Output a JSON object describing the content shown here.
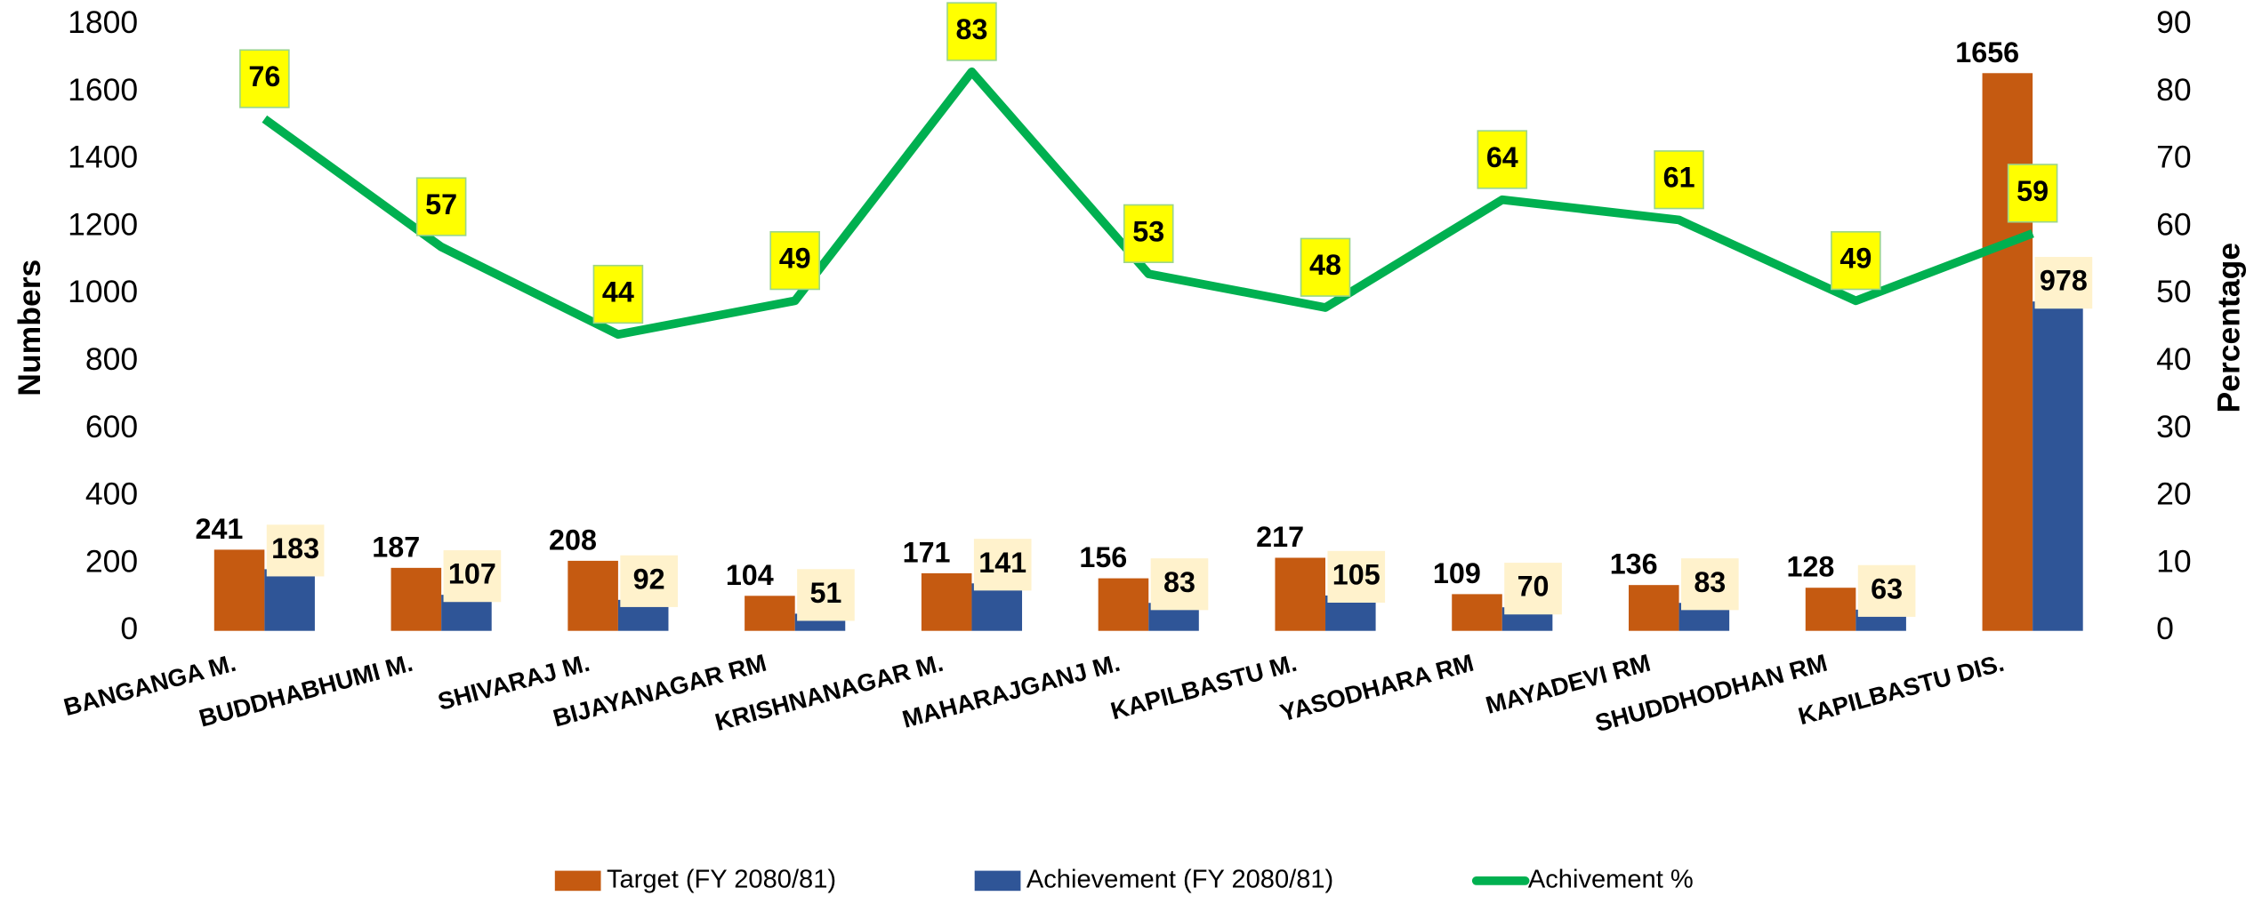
{
  "chart_data": {
    "type": "bar",
    "categories": [
      "BANGANGA M.",
      "BUDDHABHUMI M.",
      "SHIVARAJ M.",
      "BIJAYANAGAR RM",
      "KRISHNANAGAR M.",
      "MAHARAJGANJ M.",
      "KAPILBASTU M.",
      "YASODHARA RM",
      "MAYADEVI RM",
      "SHUDDHODHAN RM",
      "KAPILBASTU DIS."
    ],
    "series": [
      {
        "name": "Target (FY 2080/81)",
        "type": "bar",
        "color": "#c55a11",
        "values": [
          241,
          187,
          208,
          104,
          171,
          156,
          217,
          109,
          136,
          128,
          1656
        ]
      },
      {
        "name": "Achievement  (FY 2080/81)",
        "type": "bar",
        "color": "#2f5597",
        "values": [
          183,
          107,
          92,
          51,
          141,
          83,
          105,
          70,
          83,
          63,
          978
        ]
      },
      {
        "name": "Achivement %",
        "type": "line",
        "axis": "y2",
        "color": "#00b050",
        "values": [
          76,
          57,
          44,
          49,
          83,
          53,
          48,
          64,
          61,
          49,
          59
        ]
      }
    ],
    "ylabel": "Numbers",
    "y2label": "Percentage",
    "ylim": [
      0,
      1800
    ],
    "yticks": [
      0,
      200,
      400,
      600,
      800,
      1000,
      1200,
      1400,
      1600,
      1800
    ],
    "y2lim": [
      0,
      90
    ],
    "y2ticks": [
      0,
      10,
      20,
      30,
      40,
      50,
      60,
      70,
      80,
      90
    ],
    "grid": false,
    "legend": "bottom"
  }
}
